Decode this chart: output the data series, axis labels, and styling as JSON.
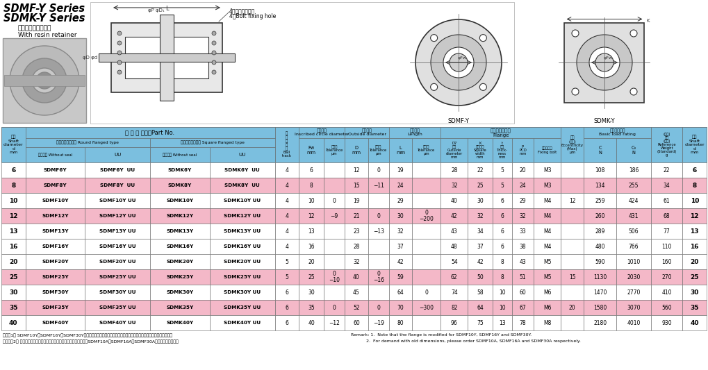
{
  "title_line1": "SDMF-Y Series",
  "title_line2": "SDMK-Y Series",
  "subtitle1": "ナイロン保持器付き",
  "subtitle2": "With resin retainer",
  "light_blue": "#7BBFDF",
  "pink": "#F4B8C8",
  "white": "#FFFFFF",
  "row_colors": [
    "#FFFFFF",
    "#F4B8C8",
    "#FFFFFF",
    "#F4B8C8",
    "#FFFFFF",
    "#FFFFFF",
    "#FFFFFF",
    "#F4B8C8",
    "#FFFFFF",
    "#F4B8C8",
    "#FFFFFF"
  ],
  "rows": [
    [
      "6",
      "SDMF6Y",
      "SDMF6Y  UU",
      "SDMK6Y",
      "SDMK6Y  UU",
      "4",
      "6",
      "",
      "12",
      "0",
      "19",
      "",
      "28",
      "22",
      "5",
      "20",
      "M3",
      "",
      "108",
      "186",
      "22",
      "6"
    ],
    [
      "8",
      "SDMF8Y",
      "SDMF8Y  UU",
      "SDMK8Y",
      "SDMK8Y  UU",
      "4",
      "8",
      "",
      "15",
      "−11",
      "24",
      "",
      "32",
      "25",
      "5",
      "24",
      "M3",
      "",
      "134",
      "255",
      "34",
      "8"
    ],
    [
      "10",
      "SDMF10Y",
      "SDMF10Y UU",
      "SDMK10Y",
      "SDMK10Y UU",
      "4",
      "10",
      "0",
      "19",
      "",
      "29",
      "",
      "40",
      "30",
      "6",
      "29",
      "M4",
      "12",
      "259",
      "424",
      "61",
      "10"
    ],
    [
      "12",
      "SDMF12Y",
      "SDMF12Y UU",
      "SDMK12Y",
      "SDMK12Y UU",
      "4",
      "12",
      "−9",
      "21",
      "0",
      "30",
      "0\n−200",
      "42",
      "32",
      "6",
      "32",
      "M4",
      "",
      "260",
      "431",
      "68",
      "12"
    ],
    [
      "13",
      "SDMF13Y",
      "SDMF13Y UU",
      "SDMK13Y",
      "SDMK13Y UU",
      "4",
      "13",
      "",
      "23",
      "−13",
      "32",
      "",
      "43",
      "34",
      "6",
      "33",
      "M4",
      "",
      "289",
      "506",
      "77",
      "13"
    ],
    [
      "16",
      "SDMF16Y",
      "SDMF16Y UU",
      "SDMK16Y",
      "SDMK16Y UU",
      "4",
      "16",
      "",
      "28",
      "",
      "37",
      "",
      "48",
      "37",
      "6",
      "38",
      "M4",
      "",
      "480",
      "766",
      "110",
      "16"
    ],
    [
      "20",
      "SDMF20Y",
      "SDMF20Y UU",
      "SDMK20Y",
      "SDMK20Y UU",
      "5",
      "20",
      "",
      "32",
      "",
      "42",
      "",
      "54",
      "42",
      "8",
      "43",
      "M5",
      "",
      "590",
      "1010",
      "160",
      "20"
    ],
    [
      "25",
      "SDMF25Y",
      "SDMF25Y UU",
      "SDMK25Y",
      "SDMK25Y UU",
      "5",
      "25",
      "0\n−10",
      "40",
      "0\n−16",
      "59",
      "",
      "62",
      "50",
      "8",
      "51",
      "M5",
      "15",
      "1130",
      "2030",
      "270",
      "25"
    ],
    [
      "30",
      "SDMF30Y",
      "SDMF30Y UU",
      "SDMK30Y",
      "SDMK30Y UU",
      "6",
      "30",
      "",
      "45",
      "",
      "64",
      "0",
      "74",
      "58",
      "10",
      "60",
      "M6",
      "",
      "1470",
      "2770",
      "410",
      "30"
    ],
    [
      "35",
      "SDMF35Y",
      "SDMF35Y UU",
      "SDMK35Y",
      "SDMK35Y UU",
      "6",
      "35",
      "0",
      "52",
      "0",
      "70",
      "−300",
      "82",
      "64",
      "10",
      "67",
      "M6",
      "20",
      "1580",
      "3070",
      "560",
      "35"
    ],
    [
      "40",
      "SDMF40Y",
      "SDMF40Y UU",
      "SDMK40Y",
      "SDMK40Y UU",
      "6",
      "40",
      "−12",
      "60",
      "−19",
      "80",
      "",
      "96",
      "75",
      "13",
      "78",
      "M8",
      "",
      "2180",
      "4010",
      "930",
      "40"
    ]
  ],
  "footnote_jp": "参考　1． SDMF10Y、SDMF16Y、SDMF30Yは、モデルチェンジしたフランジを採用しておりますのでご注意ください。",
  "footnote_jp2": "　　　　2． 従来のフランジ寸法の品が必要な場合は、鉄リテナー品のSDMF10A、SDMF16A、SDMF30Aをご用命ください。",
  "footnote_en": "Remark: 1.  Note that the flange is modified for SDMF10Y, SDMF16Y and SDMF30Y.",
  "footnote_en2": "           2.  For demand with old dimensions, please order SDMF10A, SDMF16A and SDMF30A respectively."
}
